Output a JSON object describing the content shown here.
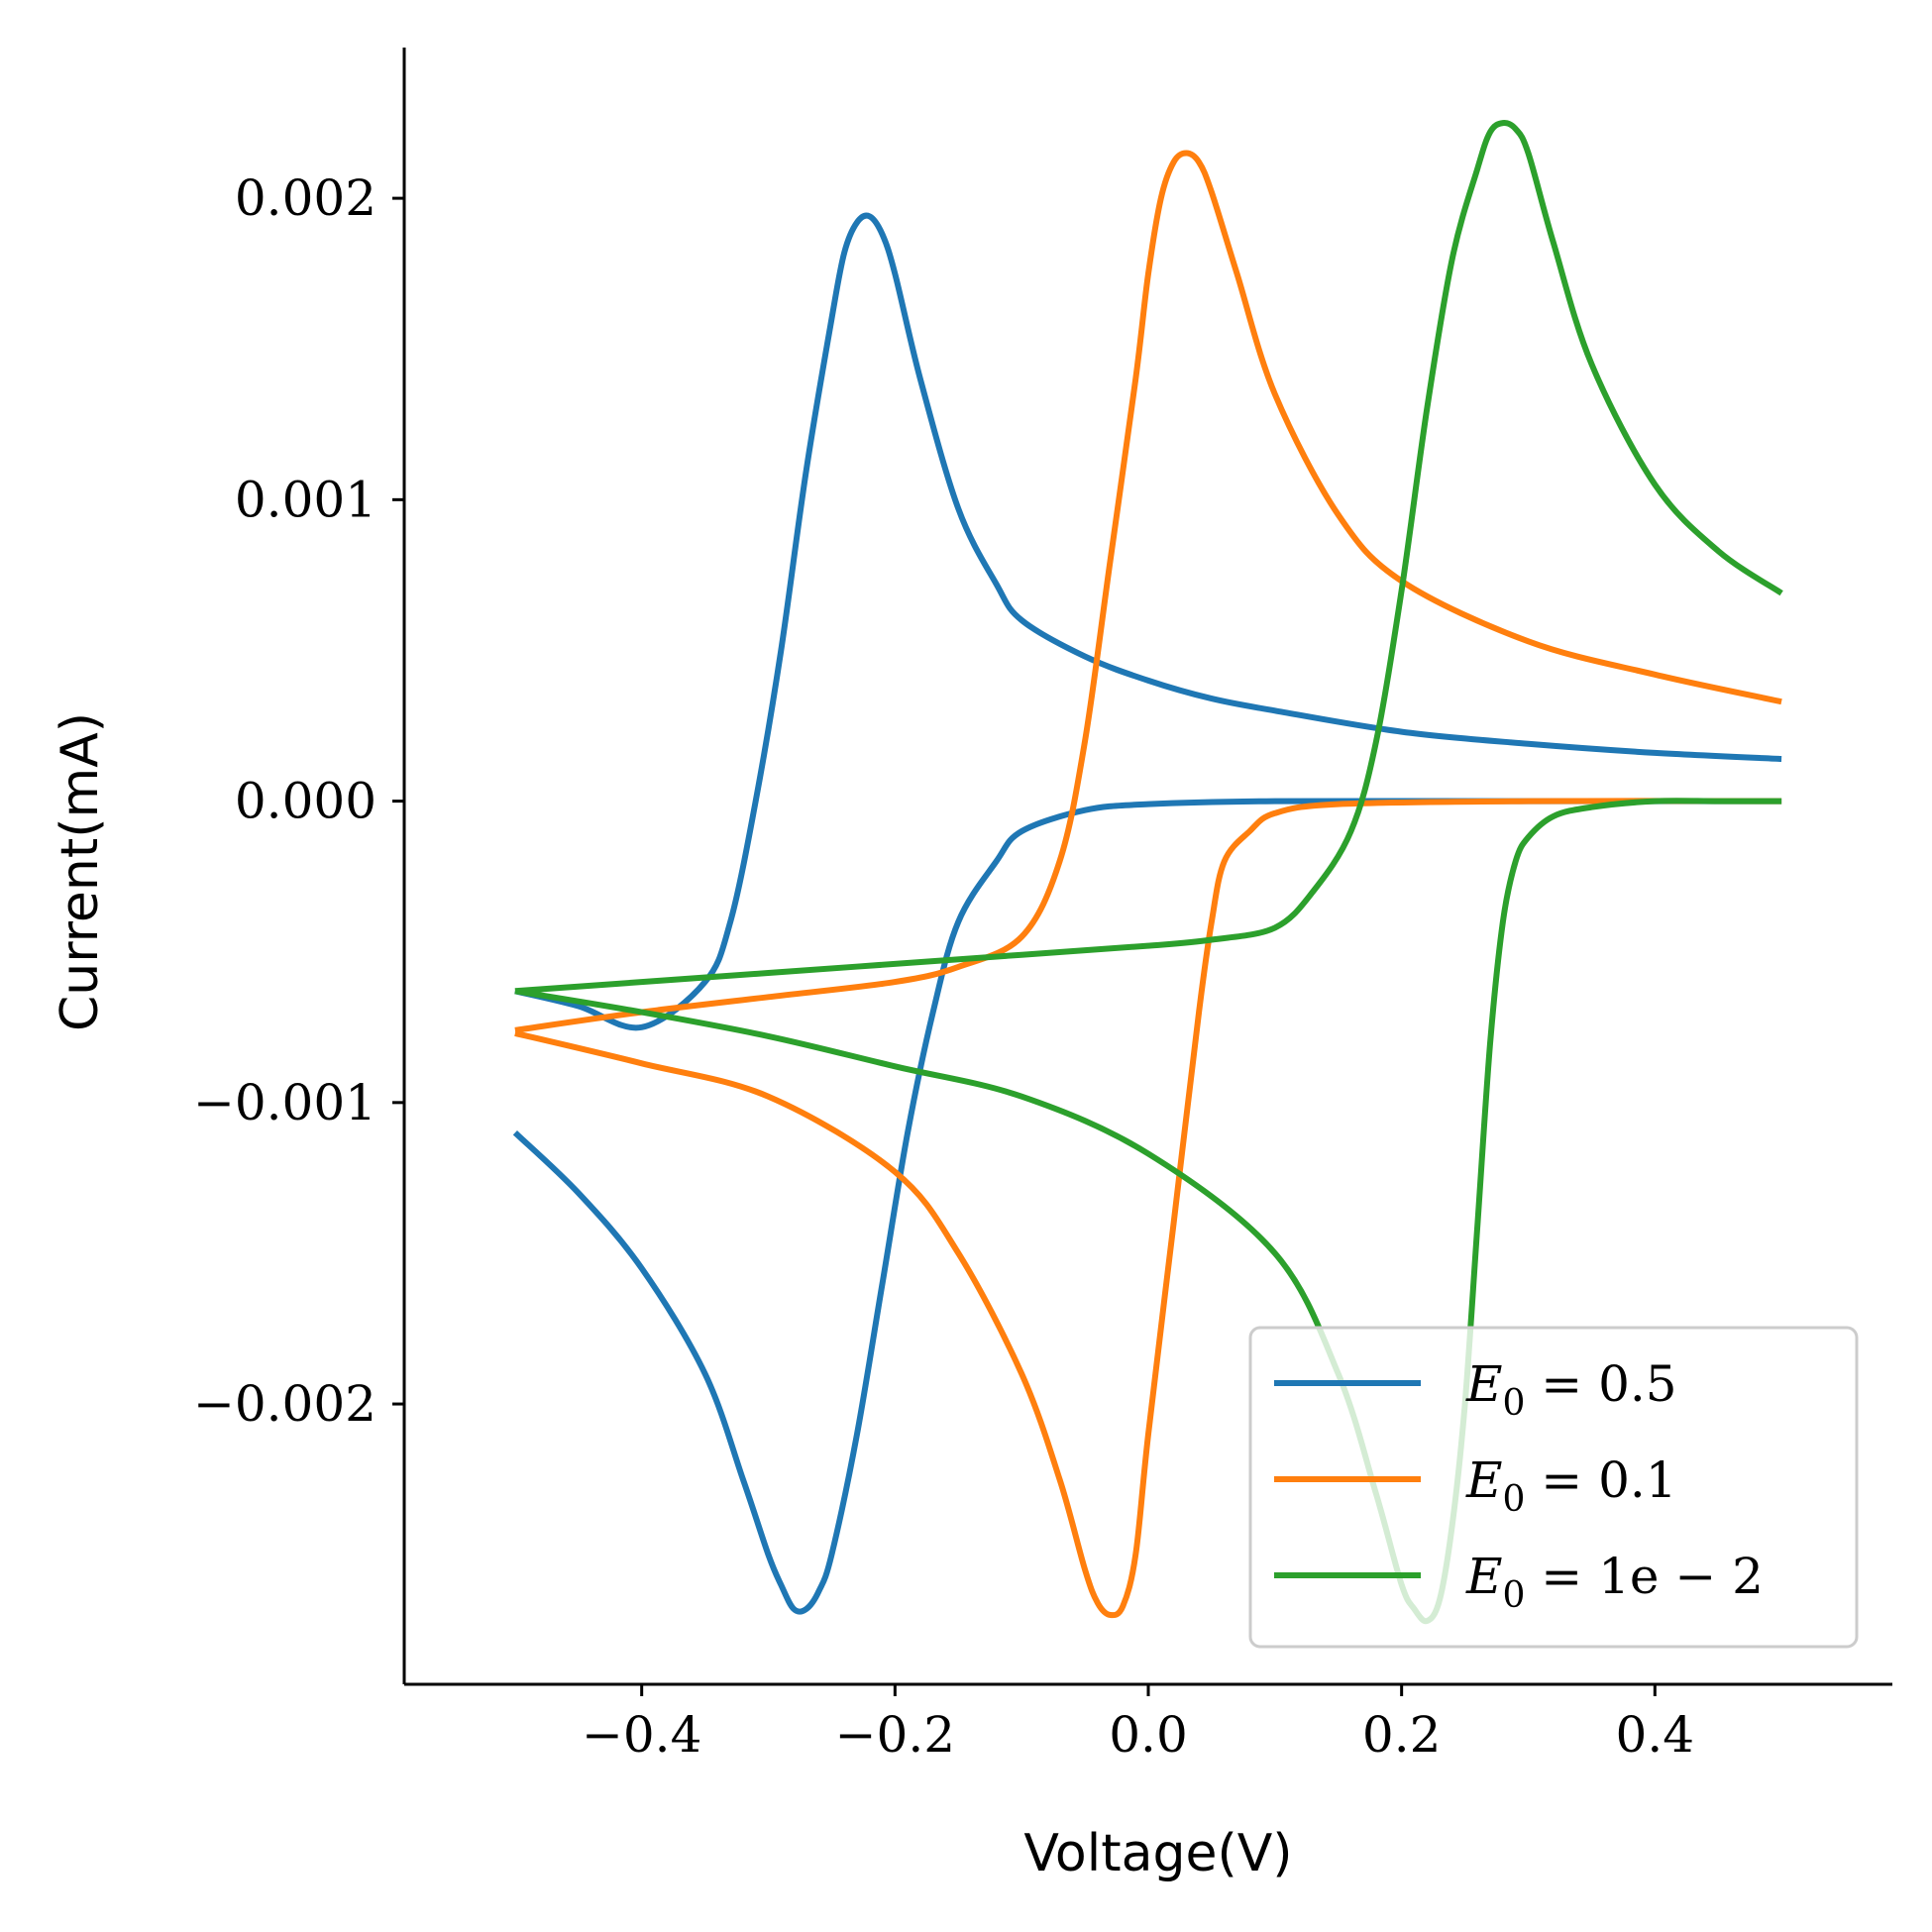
{
  "chart_data": {
    "type": "line",
    "title": "",
    "xlabel": "Voltage(V)",
    "ylabel": "Current(mA)",
    "xlim": [
      -0.5875,
      0.5875
    ],
    "ylim": [
      -0.00293,
      0.0025
    ],
    "xticks": [
      -0.4,
      -0.2,
      0.0,
      0.2,
      0.4
    ],
    "xtick_labels": [
      "−0.4",
      "−0.2",
      "0.0",
      "0.2",
      "0.4"
    ],
    "yticks": [
      0.002,
      0.001,
      0.0,
      -0.001,
      -0.002
    ],
    "ytick_labels": [
      "0.002",
      "0.001",
      "0.000",
      "−0.001",
      "−0.002"
    ],
    "grid": false,
    "legend_position": "bottom-right",
    "series": [
      {
        "name": "E_0 = 0.5",
        "label_main": "E",
        "label_sub": "0",
        "label_rest": " = 0.5",
        "color": "#1f77b4",
        "e_half": -0.25,
        "forward_x": [
          -0.5,
          -0.45,
          -0.4,
          -0.35,
          -0.33,
          -0.31,
          -0.29,
          -0.27,
          -0.25,
          -0.24,
          -0.23,
          -0.22,
          -0.21,
          -0.2,
          -0.18,
          -0.15,
          -0.12,
          -0.1,
          -0.05,
          0.0,
          0.05,
          0.1,
          0.2,
          0.3,
          0.4,
          0.5
        ],
        "forward_y": [
          -0.00063,
          -0.00068,
          -0.00075,
          -0.0006,
          -0.0004,
          0.0,
          0.0005,
          0.0011,
          0.0016,
          0.00182,
          0.00192,
          0.00194,
          0.00188,
          0.00175,
          0.0014,
          0.00097,
          0.00072,
          0.0006,
          0.00048,
          0.0004,
          0.00034,
          0.0003,
          0.00023,
          0.00019,
          0.00016,
          0.00014
        ],
        "reverse_x": [
          0.5,
          0.3,
          0.1,
          0.0,
          -0.05,
          -0.1,
          -0.12,
          -0.15,
          -0.17,
          -0.19,
          -0.21,
          -0.23,
          -0.25,
          -0.26,
          -0.27,
          -0.28,
          -0.29,
          -0.3,
          -0.32,
          -0.35,
          -0.4,
          -0.45,
          -0.5
        ],
        "reverse_y": [
          0.0,
          0.0,
          0.0,
          -1e-05,
          -3e-05,
          -0.0001,
          -0.0002,
          -0.0004,
          -0.0007,
          -0.0011,
          -0.0016,
          -0.0021,
          -0.0025,
          -0.00262,
          -0.00268,
          -0.00268,
          -0.0026,
          -0.0025,
          -0.00225,
          -0.0019,
          -0.00155,
          -0.0013,
          -0.0011
        ]
      },
      {
        "name": "E_0 = 0.1",
        "label_main": "E",
        "label_sub": "0",
        "label_rest": " = 0.1",
        "color": "#ff7f0e",
        "e_half": 0.0,
        "forward_x": [
          -0.5,
          -0.4,
          -0.3,
          -0.2,
          -0.15,
          -0.1,
          -0.07,
          -0.05,
          -0.03,
          -0.01,
          0.0,
          0.01,
          0.02,
          0.03,
          0.04,
          0.05,
          0.07,
          0.1,
          0.15,
          0.2,
          0.3,
          0.4,
          0.5
        ],
        "forward_y": [
          -0.00076,
          -0.0007,
          -0.00065,
          -0.0006,
          -0.00055,
          -0.00045,
          -0.0002,
          0.0002,
          0.0008,
          0.0014,
          0.00175,
          0.002,
          0.00212,
          0.00215,
          0.00212,
          0.00202,
          0.00175,
          0.00135,
          0.00095,
          0.00073,
          0.00053,
          0.00042,
          0.00033
        ],
        "reverse_x": [
          0.5,
          0.3,
          0.15,
          0.1,
          0.08,
          0.06,
          0.05,
          0.04,
          0.02,
          0.0,
          -0.01,
          -0.02,
          -0.03,
          -0.04,
          -0.05,
          -0.07,
          -0.1,
          -0.15,
          -0.2,
          -0.3,
          -0.4,
          -0.5
        ],
        "reverse_y": [
          0.0,
          0.0,
          -1e-05,
          -4e-05,
          -0.0001,
          -0.0002,
          -0.0004,
          -0.0007,
          -0.0014,
          -0.0021,
          -0.0025,
          -0.00267,
          -0.0027,
          -0.00266,
          -0.00255,
          -0.00225,
          -0.0019,
          -0.0015,
          -0.00123,
          -0.00098,
          -0.00087,
          -0.00077
        ]
      },
      {
        "name": "E_0 = 1e − 2",
        "label_main": "E",
        "label_sub": "0",
        "label_rest": " = 1e − 2",
        "color": "#2ca02c",
        "e_half": 0.25,
        "forward_x": [
          -0.5,
          -0.3,
          -0.1,
          0.0,
          0.05,
          0.1,
          0.13,
          0.16,
          0.18,
          0.2,
          0.22,
          0.24,
          0.26,
          0.27,
          0.28,
          0.29,
          0.3,
          0.32,
          0.35,
          0.4,
          0.45,
          0.5
        ],
        "forward_y": [
          -0.00063,
          -0.00057,
          -0.00051,
          -0.00048,
          -0.00046,
          -0.00042,
          -0.0003,
          -0.0001,
          0.0002,
          0.0007,
          0.0013,
          0.0018,
          0.0021,
          0.00222,
          0.00225,
          0.00223,
          0.00215,
          0.00185,
          0.00145,
          0.00105,
          0.00083,
          0.00069
        ],
        "reverse_x": [
          0.5,
          0.45,
          0.4,
          0.35,
          0.32,
          0.3,
          0.29,
          0.28,
          0.27,
          0.26,
          0.25,
          0.24,
          0.23,
          0.22,
          0.21,
          0.2,
          0.18,
          0.15,
          0.1,
          0.0,
          -0.1,
          -0.2,
          -0.3,
          -0.4,
          -0.5
        ],
        "reverse_y": [
          0.0,
          0.0,
          0.0,
          -2e-05,
          -5e-05,
          -0.00012,
          -0.0002,
          -0.0004,
          -0.0008,
          -0.0014,
          -0.002,
          -0.0024,
          -0.00265,
          -0.00272,
          -0.00268,
          -0.0026,
          -0.0023,
          -0.0019,
          -0.0015,
          -0.00117,
          -0.00098,
          -0.00088,
          -0.00078,
          -0.0007,
          -0.00063
        ]
      }
    ]
  }
}
